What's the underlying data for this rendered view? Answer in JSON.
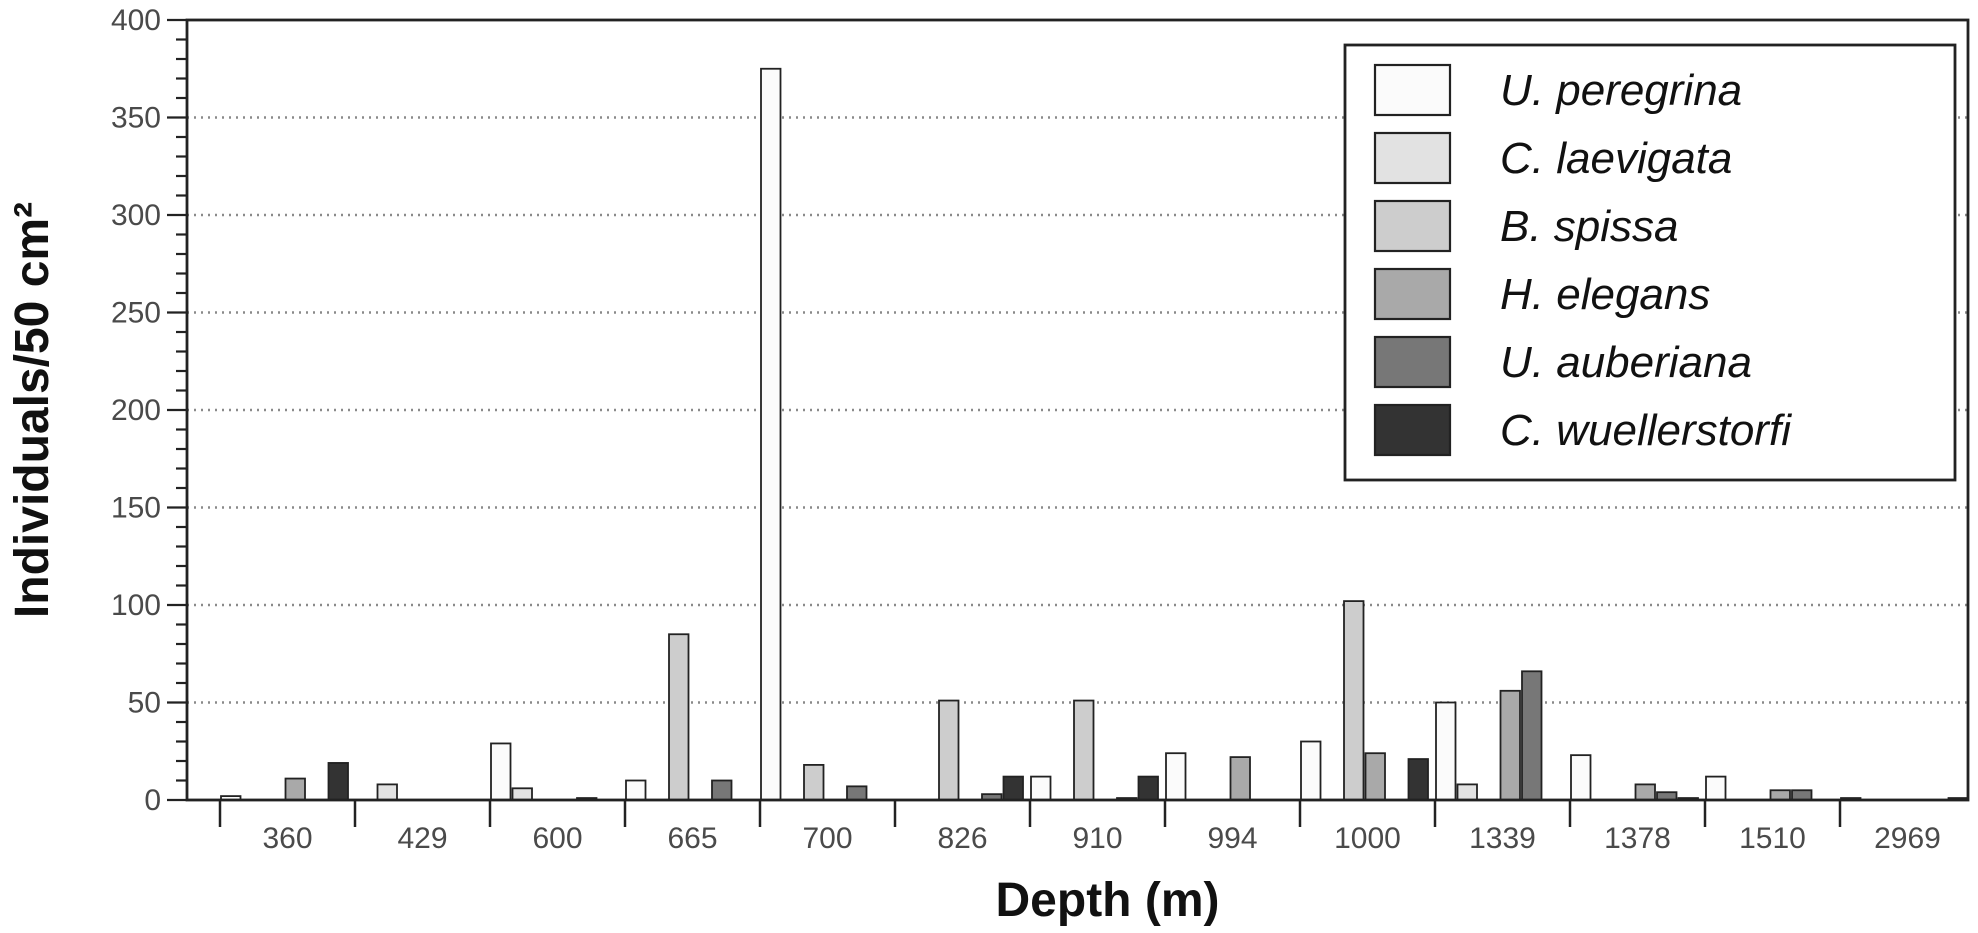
{
  "chart_data": {
    "type": "bar",
    "xlabel": "Depth (m)",
    "ylabel": "Individuals/50 cm²",
    "ylim": [
      0,
      400
    ],
    "yticks": [
      "0",
      "50",
      "100",
      "150",
      "200",
      "250",
      "300",
      "350",
      "400"
    ],
    "grid": "horizontal dotted",
    "legend_position": "top-right",
    "categories": [
      "360",
      "429",
      "600",
      "665",
      "700",
      "826",
      "910",
      "994",
      "1000",
      "1339",
      "1378",
      "1510",
      "2969"
    ],
    "series": [
      {
        "name": "U. peregrina",
        "color": "#fbfbfb",
        "values": [
          2,
          0,
          29,
          10,
          375,
          0,
          12,
          24,
          30,
          50,
          23,
          12,
          1
        ]
      },
      {
        "name": "C. laevigata",
        "color": "#e2e2e2",
        "values": [
          0,
          8,
          6,
          0,
          0,
          0,
          0,
          0,
          0,
          8,
          0,
          0,
          0
        ]
      },
      {
        "name": "B. spissa",
        "color": "#cdcdcd",
        "values": [
          0,
          0,
          0,
          85,
          18,
          51,
          51,
          0,
          102,
          0,
          0,
          0,
          0
        ]
      },
      {
        "name": "H. elegans",
        "color": "#a9a9a9",
        "values": [
          11,
          0,
          0,
          0,
          0,
          0,
          0,
          22,
          24,
          56,
          8,
          5,
          0
        ]
      },
      {
        "name": "U. auberiana",
        "color": "#777777",
        "values": [
          0,
          0,
          1,
          10,
          7,
          3,
          1,
          0,
          0,
          66,
          4,
          5,
          0
        ]
      },
      {
        "name": "C. wuellerstorfi",
        "color": "#333333",
        "values": [
          19,
          0,
          0,
          0,
          0,
          12,
          12,
          0,
          21,
          0,
          1,
          0,
          1
        ]
      }
    ]
  }
}
